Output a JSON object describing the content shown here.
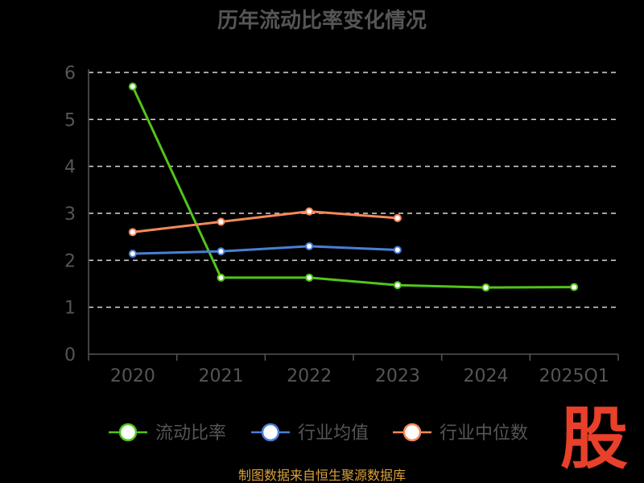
{
  "chart_data": {
    "type": "line",
    "title": "历年流动比率变化情况",
    "categories": [
      "2020",
      "2021",
      "2022",
      "2023",
      "2024",
      "2025Q1"
    ],
    "ylim": [
      0,
      6
    ],
    "yticks": [
      "0",
      "1",
      "2",
      "3",
      "4",
      "5",
      "6"
    ],
    "grid": true,
    "legend_position": "bottom",
    "series": [
      {
        "name": "流动比率",
        "color": "#52c41a",
        "values": [
          5.7,
          1.63,
          1.63,
          1.47,
          1.42,
          1.43
        ]
      },
      {
        "name": "行业均值",
        "color": "#4a7fd6",
        "values": [
          2.14,
          2.19,
          2.3,
          2.22,
          null,
          null
        ]
      },
      {
        "name": "行业中位数",
        "color": "#f5895a",
        "values": [
          2.6,
          2.82,
          3.04,
          2.9,
          null,
          null
        ]
      }
    ]
  },
  "source_text": "制图数据来自恒生聚源数据库",
  "logo_text": "股"
}
